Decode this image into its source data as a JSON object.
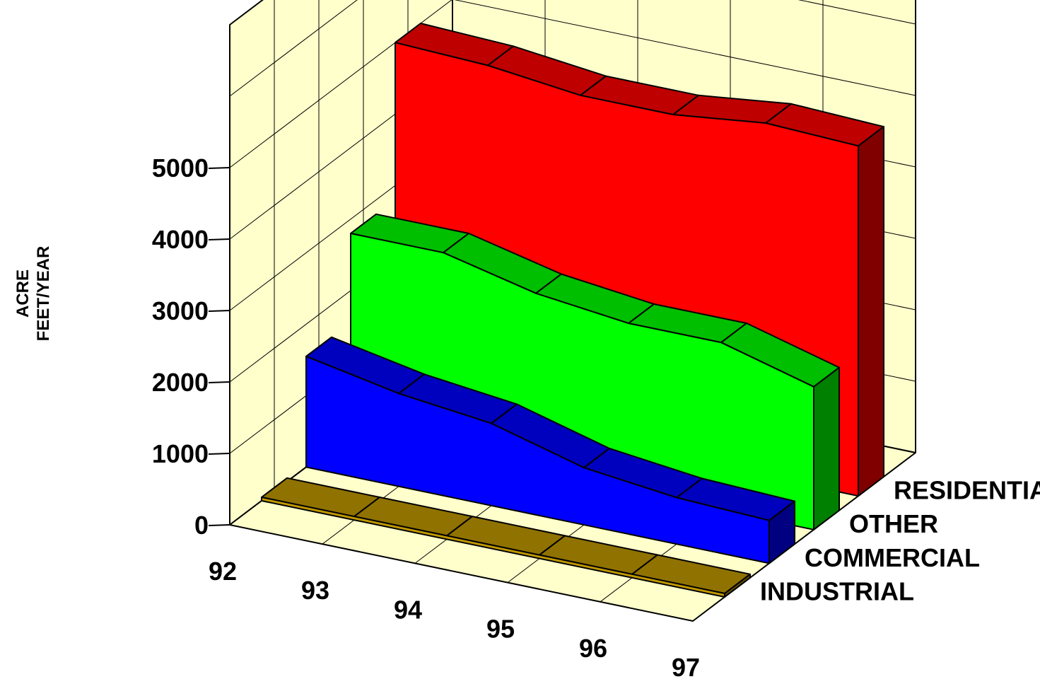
{
  "chart_data": {
    "type": "area",
    "subtype": "3d-ribbon",
    "title": "",
    "ylabel_lines": [
      "ACRE",
      "FEET/YEAR"
    ],
    "categories": [
      "92",
      "93",
      "94",
      "95",
      "96",
      "97"
    ],
    "ylim": [
      0,
      5000
    ],
    "yticks": [
      "0",
      "1000",
      "2000",
      "3000",
      "4000",
      "5000"
    ],
    "grid": true,
    "series": [
      {
        "name": "INDUSTRIAL",
        "values": [
          50,
          50,
          50,
          50,
          50,
          50
        ],
        "color": "#c09800"
      },
      {
        "name": "COMMERCIAL",
        "values": [
          1550,
          1300,
          1150,
          800,
          650,
          600
        ],
        "color": "#0000ff"
      },
      {
        "name": "OTHER",
        "values": [
          2800,
          2800,
          2500,
          2350,
          2350,
          2000
        ],
        "color": "#00ff00"
      },
      {
        "name": "RESIDENTIAL",
        "values": [
          5000,
          4950,
          4800,
          4800,
          4950,
          4900
        ],
        "color": "#ff0000"
      }
    ],
    "wall_color": "#ffffcc"
  }
}
